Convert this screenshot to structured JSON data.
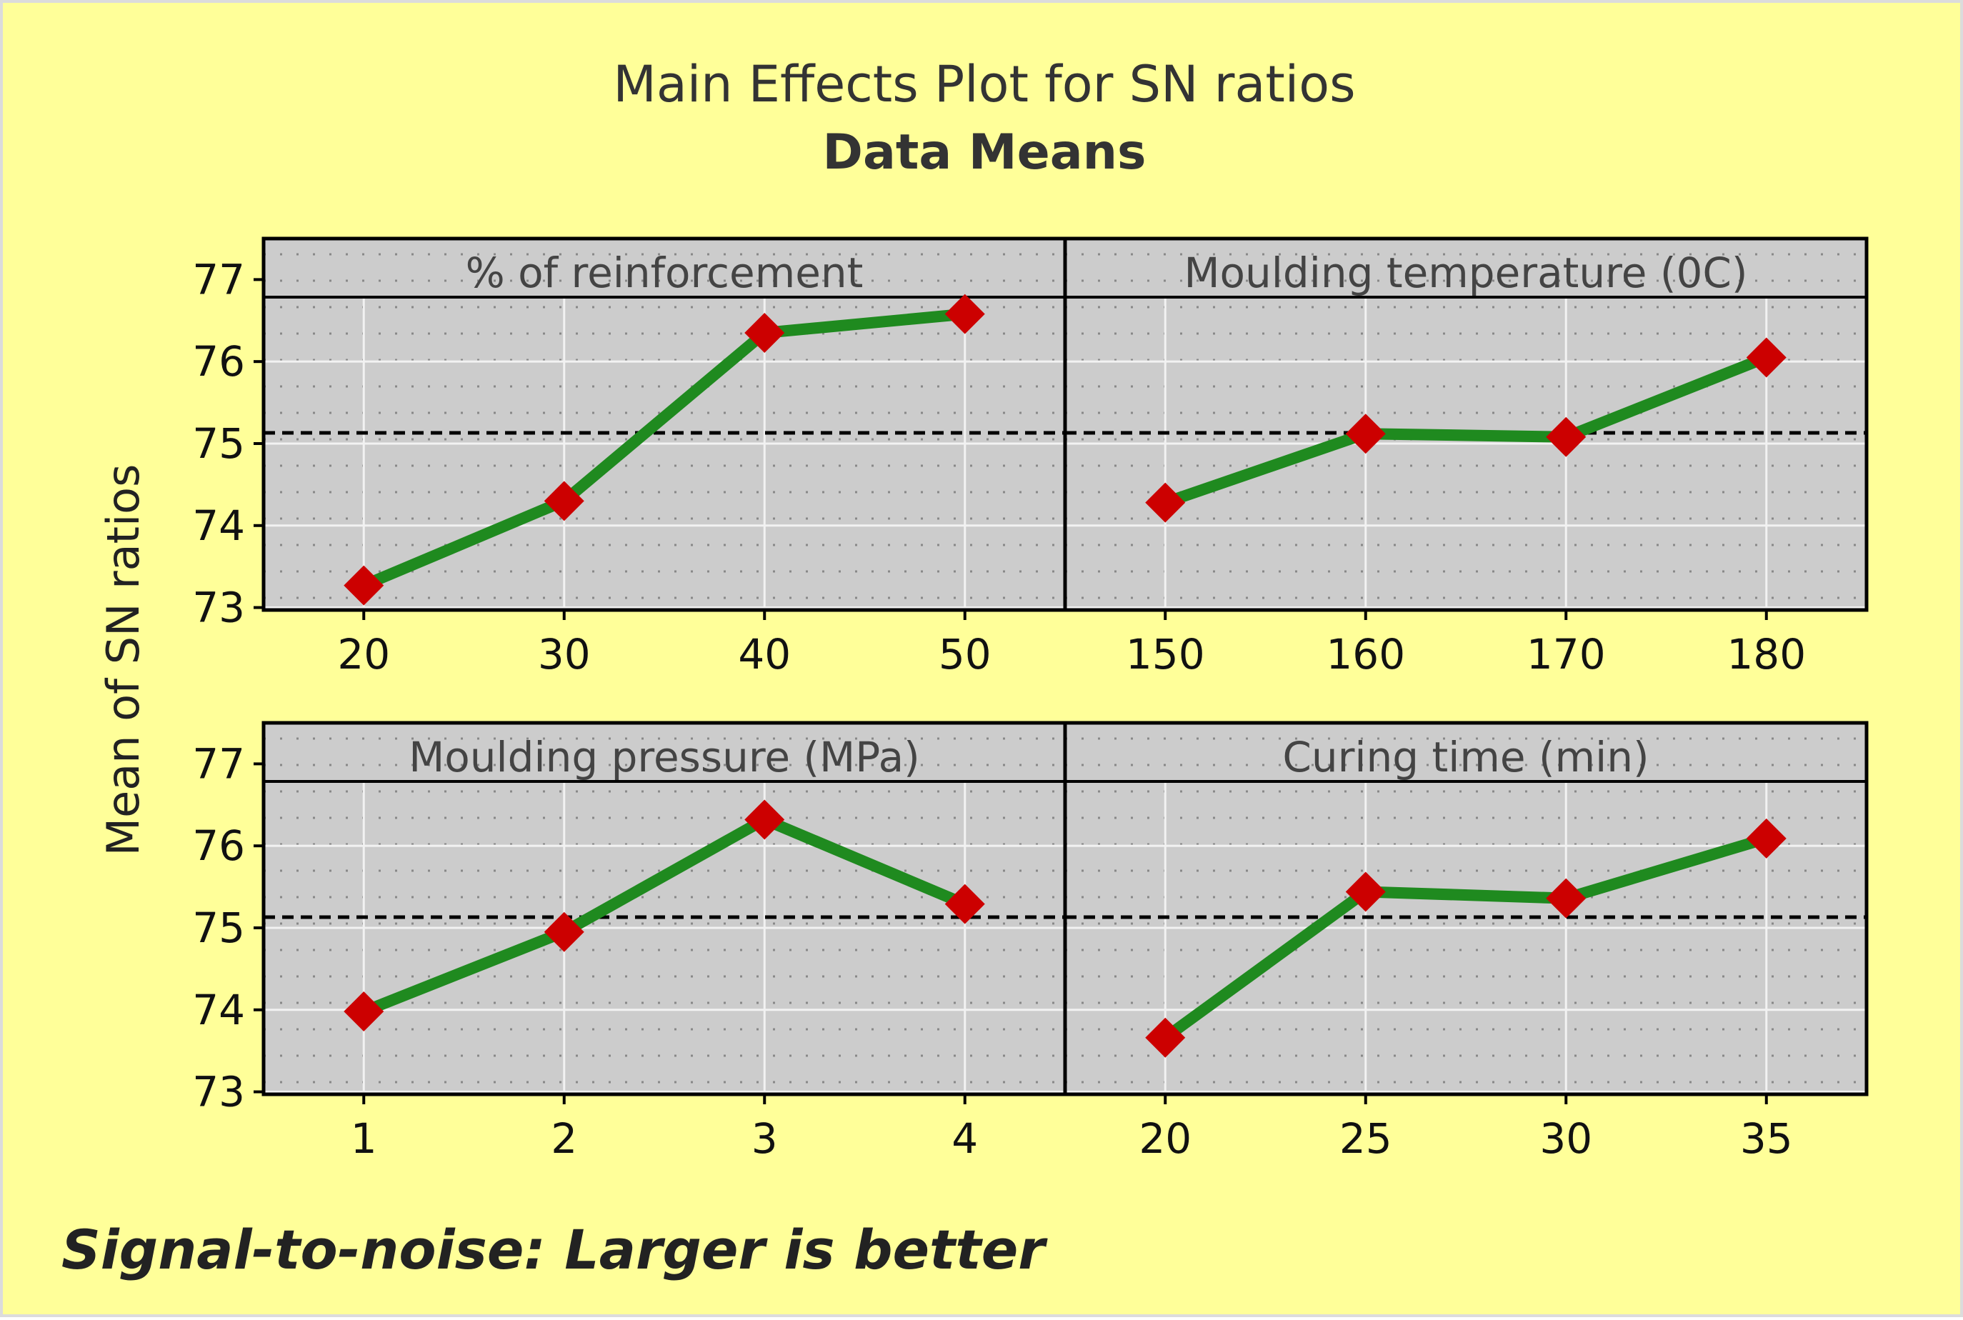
{
  "chart_data": {
    "type": "line",
    "title": "Main Effects Plot for SN ratios",
    "subtitle": "Data Means",
    "ylabel": "Mean of SN ratios",
    "footnote": "Signal-to-noise: Larger is better",
    "ylim": [
      72.97,
      77.5
    ],
    "yticks": [
      "73",
      "74",
      "75",
      "76",
      "77"
    ],
    "reference_line": 75.13,
    "grid": true,
    "colors": {
      "line": "#1f8a1f",
      "marker": "#cc0000",
      "panel": "#cccccc",
      "strip": "#cccccc",
      "background": "#ffff99",
      "reference": "#000000"
    },
    "panels": [
      {
        "name": "% of reinforcement",
        "x": [
          "20",
          "30",
          "40",
          "50"
        ],
        "values": [
          73.27,
          74.3,
          76.35,
          76.58
        ]
      },
      {
        "name": "Moulding temperature (0C)",
        "x": [
          "150",
          "160",
          "170",
          "180"
        ],
        "values": [
          74.28,
          75.12,
          75.08,
          76.05
        ]
      },
      {
        "name": "Moulding pressure (MPa)",
        "x": [
          "1",
          "2",
          "3",
          "4"
        ],
        "values": [
          73.98,
          74.95,
          76.32,
          75.29
        ]
      },
      {
        "name": "Curing time (min)",
        "x": [
          "20",
          "25",
          "30",
          "35"
        ],
        "values": [
          73.66,
          75.44,
          75.36,
          76.09
        ]
      }
    ]
  }
}
